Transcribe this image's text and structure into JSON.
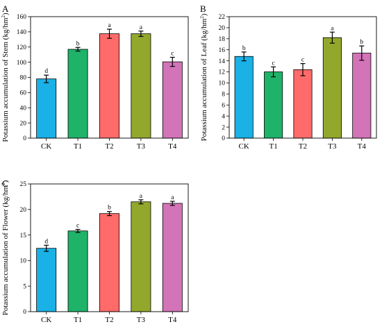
{
  "chart_data": [
    {
      "type": "bar",
      "panel": "A",
      "ylabel_main": "Potassium accumulation of Stem (kg/hm",
      "ylabel_sup": "2",
      "ylabel_end": ")",
      "categories": [
        "CK",
        "T1",
        "T2",
        "T3",
        "T4"
      ],
      "values": [
        78,
        117,
        137.5,
        137.5,
        100.5
      ],
      "errors": [
        5,
        2.5,
        6,
        3.5,
        6
      ],
      "letters": [
        "d",
        "b",
        "a",
        "a",
        "c"
      ],
      "colors": [
        "#19b1e6",
        "#1fb36a",
        "#ff6b6b",
        "#92a82c",
        "#d274b7"
      ],
      "ylim": [
        0,
        160
      ],
      "yticks": [
        0,
        20,
        40,
        60,
        80,
        100,
        120,
        140,
        160
      ],
      "grid": false
    },
    {
      "type": "bar",
      "panel": "B",
      "ylabel_main": "Potassium accumulation of Leaf (kg/hm",
      "ylabel_sup": "2",
      "ylabel_end": ")",
      "categories": [
        "CK",
        "T1",
        "T2",
        "T3",
        "T4"
      ],
      "values": [
        14.8,
        12,
        12.4,
        18.2,
        15.4
      ],
      "errors": [
        0.8,
        0.9,
        1.1,
        1.0,
        1.3
      ],
      "letters": [
        "b",
        "c",
        "c",
        "a",
        "b"
      ],
      "colors": [
        "#19b1e6",
        "#1fb36a",
        "#ff6b6b",
        "#92a82c",
        "#d274b7"
      ],
      "ylim": [
        0,
        22
      ],
      "yticks": [
        0,
        2,
        4,
        6,
        8,
        10,
        12,
        14,
        16,
        18,
        20,
        22
      ],
      "grid": false
    },
    {
      "type": "bar",
      "panel": "C",
      "ylabel_main": "Potassium accumulation of Flower (kg/hm",
      "ylabel_sup": "2",
      "ylabel_end": ")",
      "categories": [
        "CK",
        "T1",
        "T2",
        "T3",
        "T4"
      ],
      "values": [
        12.4,
        15.8,
        19.2,
        21.5,
        21.2
      ],
      "errors": [
        0.6,
        0.3,
        0.4,
        0.4,
        0.4
      ],
      "letters": [
        "d",
        "c",
        "b",
        "a",
        "a"
      ],
      "colors": [
        "#19b1e6",
        "#1fb36a",
        "#ff6b6b",
        "#92a82c",
        "#d274b7"
      ],
      "ylim": [
        0,
        25
      ],
      "yticks": [
        0,
        5,
        10,
        15,
        20,
        25
      ],
      "grid": false
    }
  ]
}
